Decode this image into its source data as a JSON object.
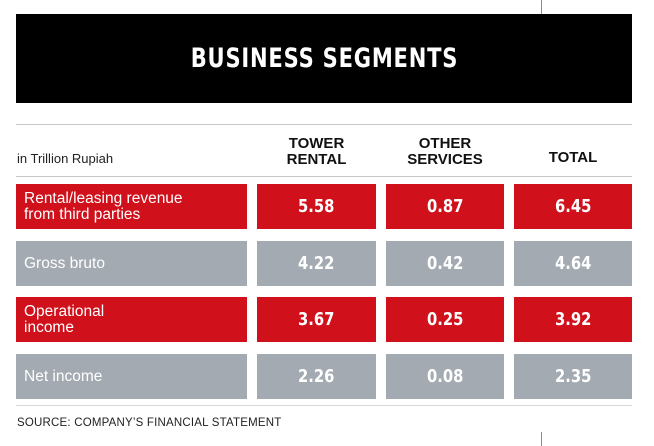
{
  "title": "BUSINESS SEGMENTS",
  "unit_label": "in Trillion Rupiah",
  "columns": [
    {
      "line1": "TOWER",
      "line2": "RENTAL"
    },
    {
      "line1": "OTHER",
      "line2": "SERVICES"
    },
    {
      "line1": "TOTAL",
      "line2": ""
    }
  ],
  "rows": [
    {
      "label_line1": "Rental/leasing revenue",
      "label_line2": "from third parties",
      "tower_rental": "5.58",
      "other_services": "0.87",
      "total": "6.45",
      "style": "red"
    },
    {
      "label_line1": "Gross bruto",
      "label_line2": "",
      "tower_rental": "4.22",
      "other_services": "0.42",
      "total": "4.64",
      "style": "grey"
    },
    {
      "label_line1": "Operational",
      "label_line2": "income",
      "tower_rental": "3.67",
      "other_services": "0.25",
      "total": "3.92",
      "style": "red"
    },
    {
      "label_line1": "Net income",
      "label_line2": "",
      "tower_rental": "2.26",
      "other_services": "0.08",
      "total": "2.35",
      "style": "grey"
    }
  ],
  "source": "SOURCE: COMPANY’S FINANCIAL STATEMENT",
  "colors": {
    "banner": "#000000",
    "red": "#d0101a",
    "grey": "#a3aab1",
    "text_on_cell": "#ffffff"
  }
}
